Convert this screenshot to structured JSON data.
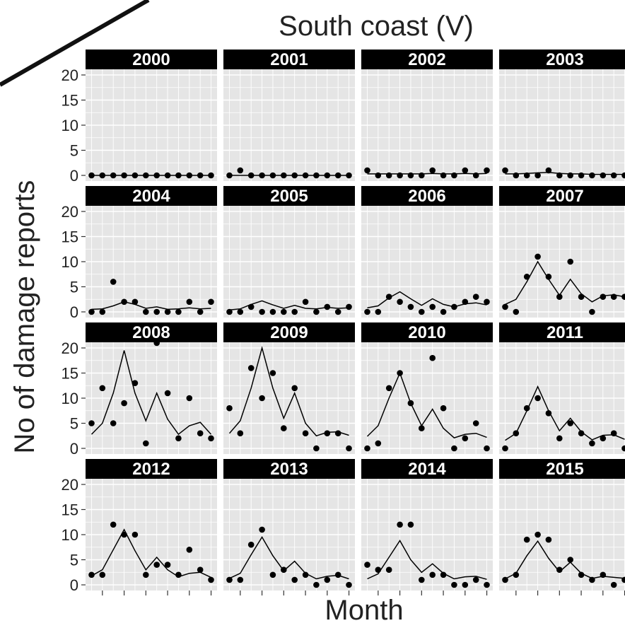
{
  "chart_data": {
    "type": "line",
    "title": "South coast (V)",
    "xlabel": "Month",
    "ylabel": "No of damage reports",
    "ylim": [
      0,
      20
    ],
    "yticks": [
      0,
      5,
      10,
      15,
      20
    ],
    "x": [
      1,
      2,
      3,
      4,
      5,
      6,
      7,
      8,
      9,
      10,
      11,
      12
    ],
    "grid": true,
    "layout": "facet grid, 4 columns x 4 rows, cropped at right edge",
    "series_style": {
      "points": "observed monthly counts",
      "line": "fitted curve"
    },
    "colors": {
      "strip_background": "#000000",
      "panel_background": "#e5e5e5",
      "grid": "#ffffff",
      "marks": "#000000"
    },
    "panels": [
      {
        "label": "2000",
        "points": [
          0,
          0,
          0,
          0,
          0,
          0,
          0,
          0,
          0,
          0,
          0,
          0
        ],
        "line": [
          0,
          0,
          0,
          0,
          0,
          0,
          0,
          0,
          0,
          0,
          0,
          0
        ]
      },
      {
        "label": "2001",
        "points": [
          0,
          1,
          0,
          0,
          0,
          0,
          0,
          0,
          0,
          0,
          0,
          0
        ],
        "line": [
          0,
          0,
          0,
          0,
          0,
          0,
          0,
          0,
          0,
          0,
          0,
          0
        ]
      },
      {
        "label": "2002",
        "points": [
          1,
          0,
          0,
          0,
          0,
          0,
          1,
          0,
          0,
          1,
          0,
          1
        ],
        "line": [
          0.3,
          0.3,
          0.3,
          0.3,
          0.3,
          0.3,
          0.4,
          0.3,
          0.3,
          0.4,
          0.3,
          0.4
        ]
      },
      {
        "label": "2003",
        "points": [
          1,
          0,
          0,
          0,
          1,
          0,
          0,
          0,
          0,
          0,
          0,
          0
        ],
        "line": [
          0.3,
          0.3,
          0.4,
          0.5,
          0.6,
          0.4,
          0.3,
          0.3,
          0.2,
          0.2,
          0.2,
          0.2
        ]
      },
      {
        "label": "2004",
        "points": [
          0,
          0,
          6,
          2,
          2,
          0,
          0,
          0,
          0,
          2,
          0,
          2
        ],
        "line": [
          0.5,
          0.6,
          1.2,
          2.0,
          1.5,
          0.7,
          1.0,
          0.5,
          0.6,
          0.8,
          0.6,
          0.7
        ]
      },
      {
        "label": "2005",
        "points": [
          0,
          0,
          1,
          0,
          0,
          0,
          0,
          2,
          0,
          1,
          0,
          1
        ],
        "line": [
          0.4,
          0.6,
          1.5,
          2.2,
          1.4,
          0.7,
          1.3,
          0.7,
          0.6,
          0.9,
          0.7,
          0.8
        ]
      },
      {
        "label": "2006",
        "points": [
          0,
          0,
          3,
          2,
          1,
          0,
          1,
          0,
          1,
          2,
          3,
          2
        ],
        "line": [
          0.8,
          1.2,
          2.8,
          4.0,
          2.6,
          1.3,
          2.6,
          1.5,
          1.0,
          1.6,
          1.8,
          1.4
        ]
      },
      {
        "label": "2007",
        "points": [
          1,
          0,
          7,
          11,
          7,
          3,
          10,
          3,
          0,
          3,
          3,
          3
        ],
        "line": [
          1.5,
          2.5,
          6.0,
          10.0,
          6.5,
          3.3,
          6.5,
          3.6,
          2.0,
          3.2,
          3.4,
          3.0
        ]
      },
      {
        "label": "2008",
        "points": [
          5,
          12,
          5,
          9,
          13,
          1,
          21,
          11,
          2,
          10,
          3,
          2
        ],
        "line": [
          2.8,
          5,
          11,
          19.5,
          11,
          5.5,
          11,
          5.8,
          2.8,
          4.5,
          5.2,
          2.8
        ]
      },
      {
        "label": "2009",
        "points": [
          8,
          3,
          16,
          10,
          15,
          4,
          12,
          3,
          0,
          3,
          3,
          0
        ],
        "line": [
          3,
          5.5,
          12,
          20,
          12,
          6,
          11,
          5,
          2.5,
          3.2,
          3.3,
          2.6
        ]
      },
      {
        "label": "2010",
        "points": [
          0,
          1,
          12,
          15,
          9,
          4,
          18,
          8,
          0,
          2,
          5,
          0
        ],
        "line": [
          2.4,
          4.5,
          10,
          15,
          9,
          4.5,
          7.8,
          4,
          2.1,
          2.8,
          3.0,
          2.2
        ]
      },
      {
        "label": "2011",
        "points": [
          0,
          3,
          8,
          10,
          7,
          2,
          5,
          3,
          1,
          2,
          3,
          0
        ],
        "line": [
          1.6,
          3,
          7.5,
          12.3,
          7.5,
          3.5,
          6.0,
          3.3,
          1.7,
          2.6,
          2.7,
          1.8
        ]
      },
      {
        "label": "2012",
        "points": [
          2,
          2,
          12,
          10,
          10,
          2,
          4,
          4,
          2,
          7,
          3,
          1
        ],
        "line": [
          1.8,
          3.0,
          7.0,
          11.0,
          6.8,
          3.0,
          5.5,
          3.0,
          1.6,
          2.3,
          2.5,
          1.5
        ]
      },
      {
        "label": "2013",
        "points": [
          1,
          1,
          8,
          11,
          2,
          3,
          1,
          2,
          0,
          1,
          2,
          0
        ],
        "line": [
          1.3,
          2.3,
          6.0,
          9.5,
          5.8,
          2.8,
          4.7,
          2.3,
          1.2,
          1.7,
          1.9,
          1.2
        ]
      },
      {
        "label": "2014",
        "points": [
          4,
          3,
          3,
          12,
          12,
          1,
          2,
          2,
          0,
          0,
          1,
          0
        ],
        "line": [
          1.2,
          2.2,
          5.5,
          8.8,
          5.0,
          2.5,
          4.2,
          2.3,
          1.2,
          1.6,
          1.7,
          1.1
        ]
      },
      {
        "label": "2015",
        "points": [
          1,
          2,
          9,
          10,
          9,
          3,
          5,
          2,
          1,
          2,
          0,
          1
        ],
        "line": [
          1.2,
          2.3,
          5.8,
          8.7,
          5.3,
          2.6,
          4.5,
          2.3,
          1.3,
          1.7,
          1.5,
          1.3
        ]
      }
    ]
  },
  "labels": {
    "title": "South coast (V)",
    "xlabel": "Month",
    "ylabel": "No of damage reports"
  }
}
